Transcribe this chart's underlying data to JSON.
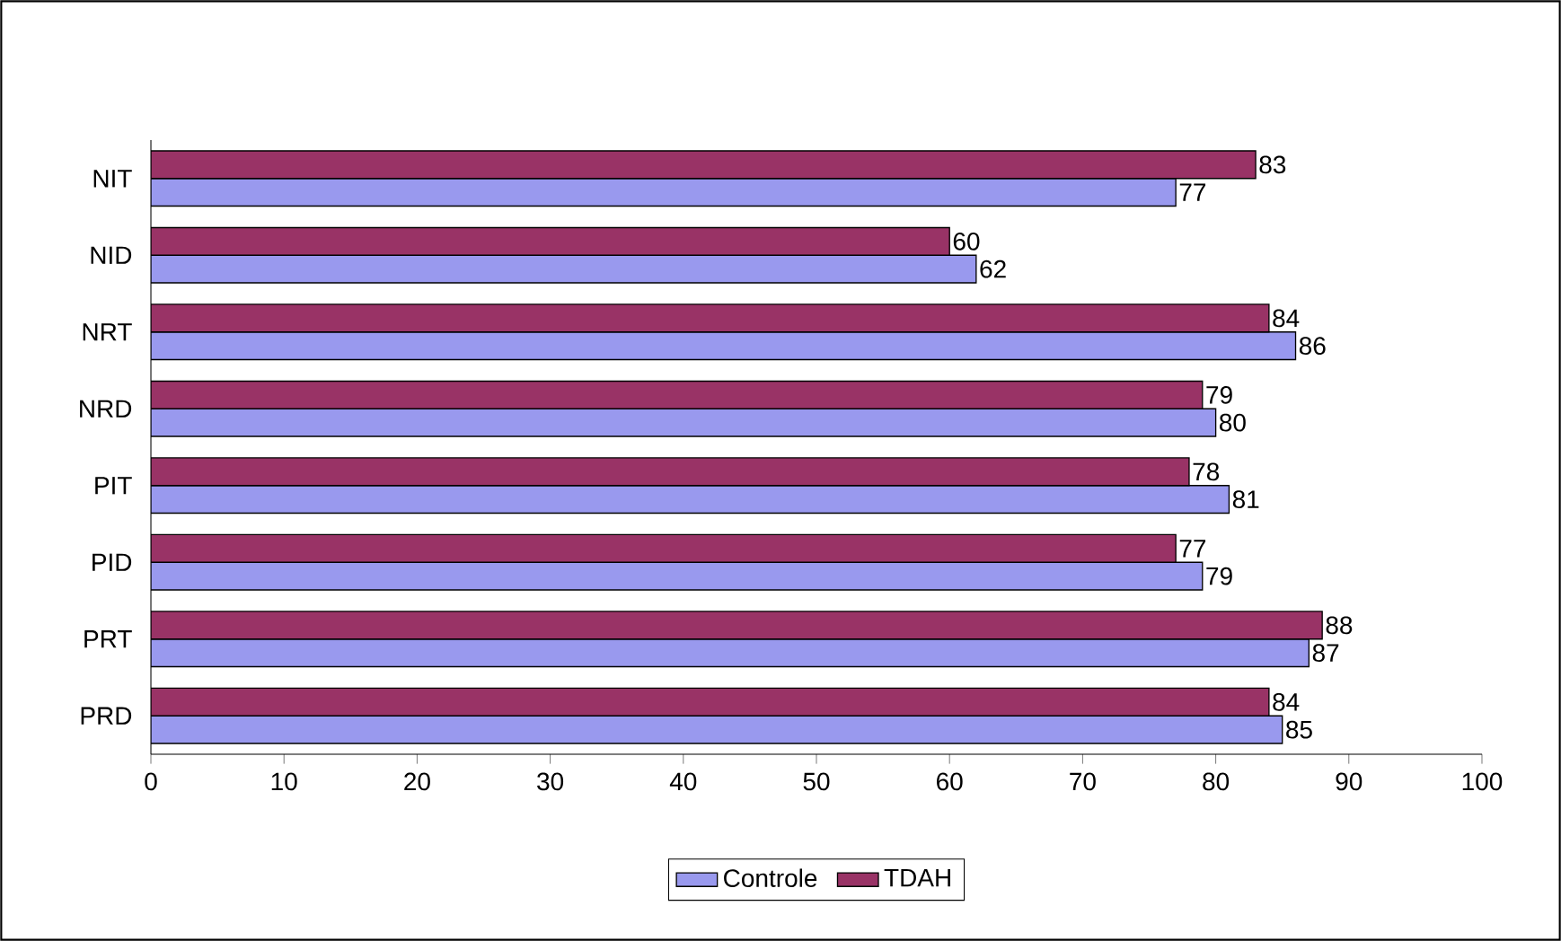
{
  "chart_data": {
    "type": "bar",
    "orientation": "horizontal",
    "categories": [
      "NIT",
      "NID",
      "NRT",
      "NRD",
      "PIT",
      "PID",
      "PRT",
      "PRD"
    ],
    "series": [
      {
        "name": "Controle",
        "color": "#9999ee",
        "values": [
          77,
          62,
          86,
          80,
          81,
          79,
          87,
          85
        ]
      },
      {
        "name": "TDAH",
        "color": "#993366",
        "values": [
          83,
          60,
          84,
          79,
          78,
          77,
          88,
          84
        ]
      }
    ],
    "xlim": [
      0,
      100
    ],
    "xticks": [
      0,
      10,
      20,
      30,
      40,
      50,
      60,
      70,
      80,
      90,
      100
    ],
    "data_labels": true,
    "legend": "bottom"
  }
}
